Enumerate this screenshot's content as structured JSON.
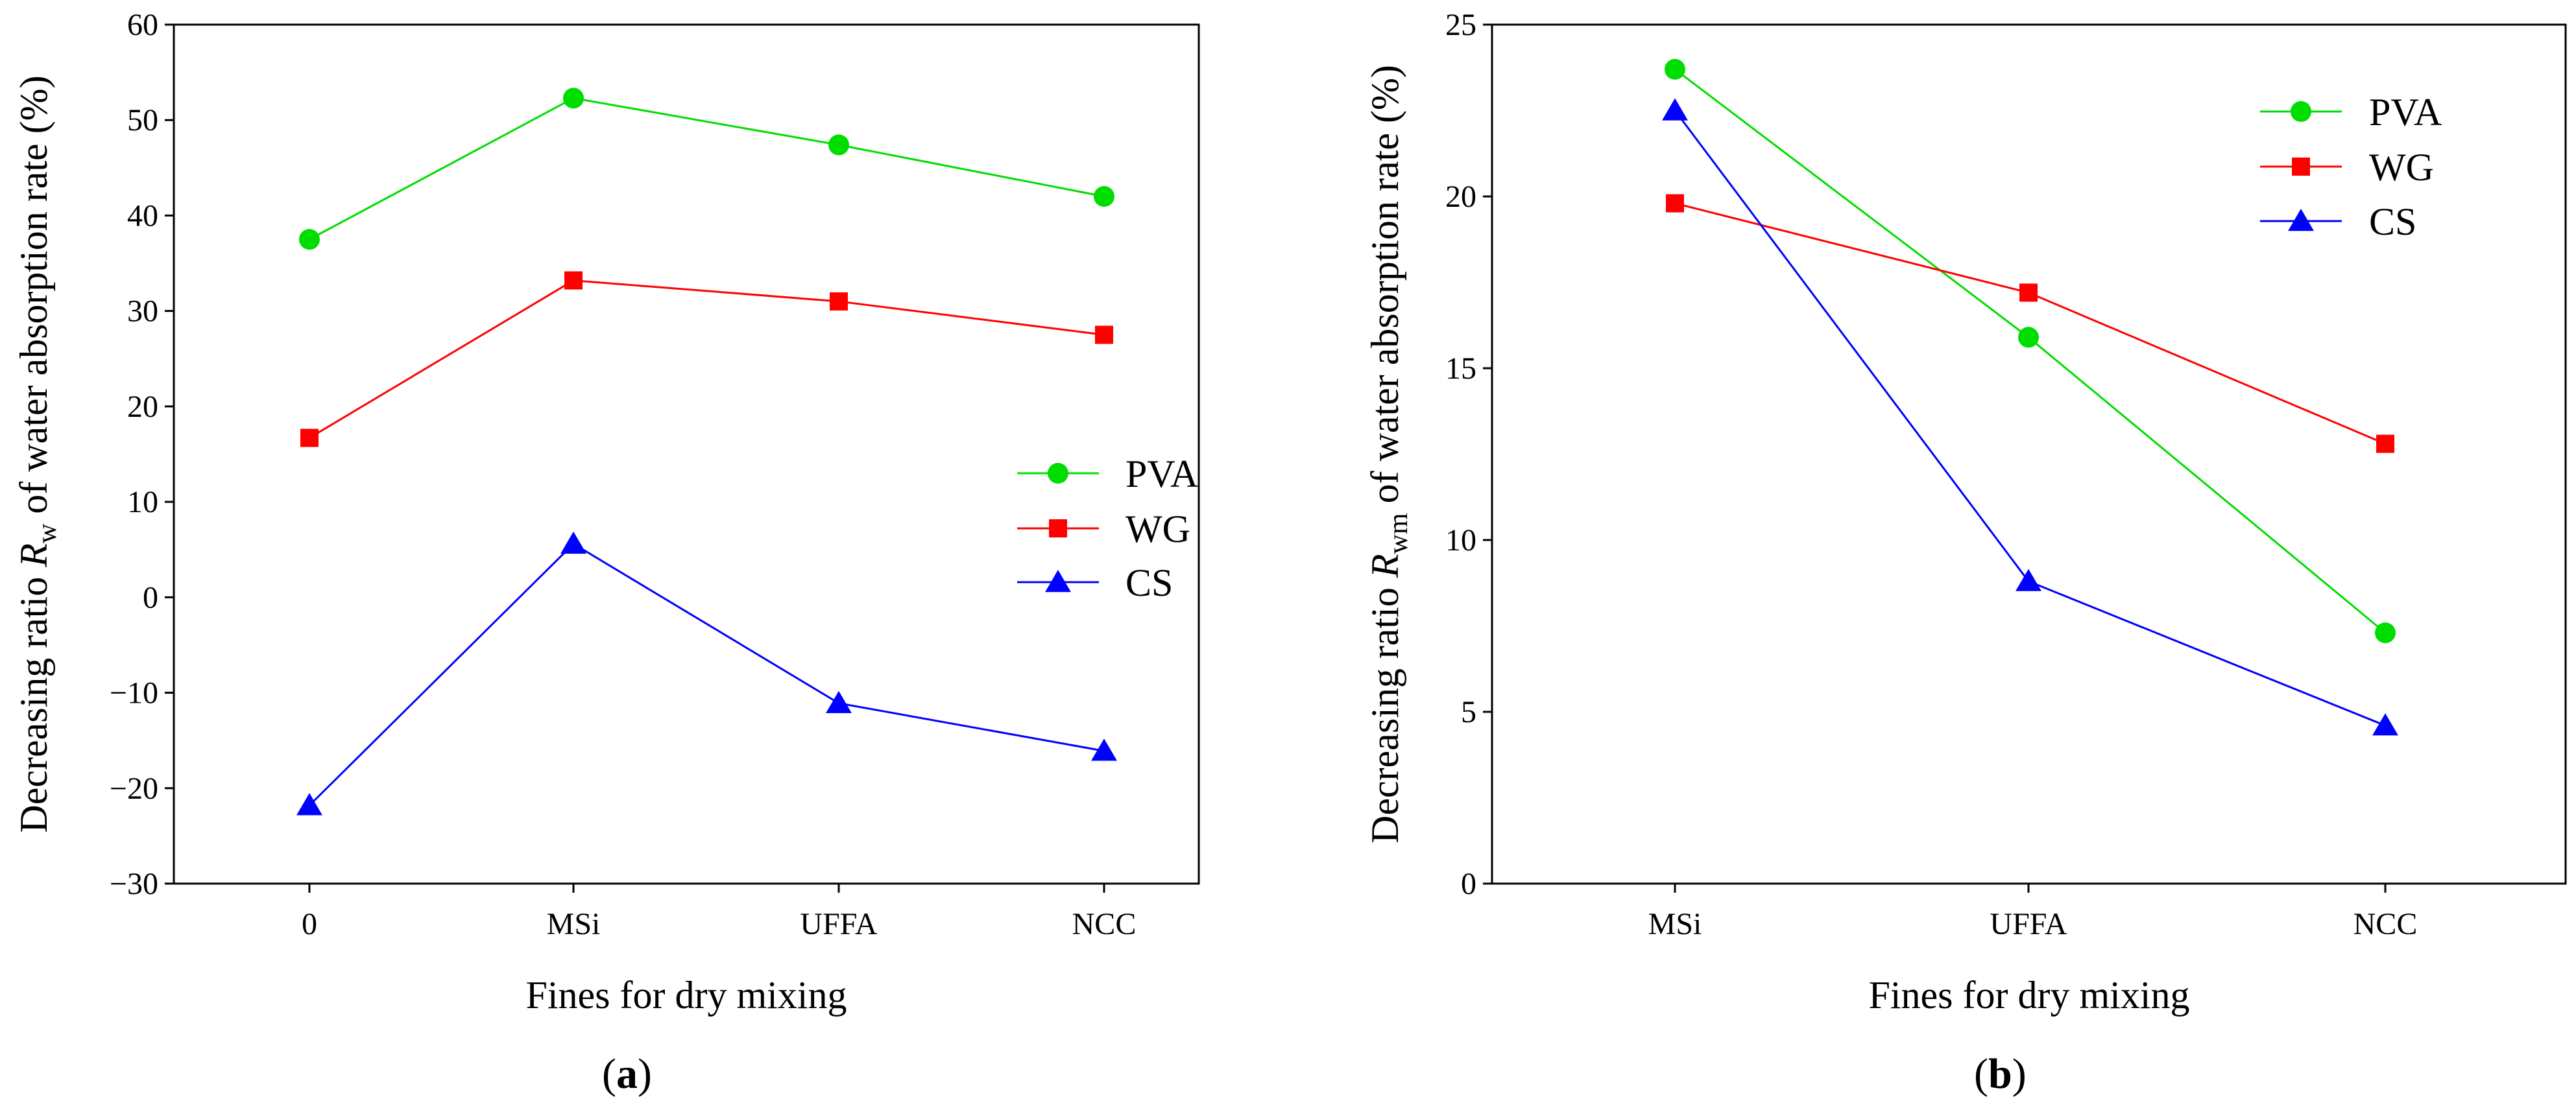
{
  "chart_data": [
    {
      "id": "a",
      "type": "line",
      "panel_label": "a",
      "categories": [
        "0",
        "MSi",
        "UFFA",
        "NCC"
      ],
      "series": [
        {
          "name": "PVA",
          "color": "#00dd00",
          "marker": "circle",
          "values": [
            37.5,
            52.3,
            47.4,
            42.0
          ]
        },
        {
          "name": "WG",
          "color": "#ff0000",
          "marker": "square",
          "values": [
            16.7,
            33.2,
            31.0,
            27.5
          ]
        },
        {
          "name": "CS",
          "color": "#0000ff",
          "marker": "triangle",
          "values": [
            -21.8,
            5.6,
            -11.1,
            -16.1
          ]
        }
      ],
      "ylim": [
        -30,
        60
      ],
      "yticks": [
        -30,
        -20,
        -10,
        0,
        10,
        20,
        30,
        40,
        50,
        60
      ],
      "ytick_labels": [
        "−30",
        "−20",
        "−10",
        "0",
        "10",
        "20",
        "30",
        "40",
        "50",
        "60"
      ],
      "xlabel": "Fines for dry mixing",
      "ylabel_prefix": "Decreasing ratio ",
      "ylabel_var": "R",
      "ylabel_sub": "w",
      "ylabel_suffix": " of water absorption rate (%)",
      "legend_position": "center-right",
      "grid": false
    },
    {
      "id": "b",
      "type": "line",
      "panel_label": "b",
      "categories": [
        "MSi",
        "UFFA",
        "NCC"
      ],
      "series": [
        {
          "name": "PVA",
          "color": "#00dd00",
          "marker": "circle",
          "values": [
            23.7,
            15.9,
            7.3
          ]
        },
        {
          "name": "WG",
          "color": "#ff0000",
          "marker": "square",
          "values": [
            19.8,
            17.2,
            12.8
          ]
        },
        {
          "name": "CS",
          "color": "#0000ff",
          "marker": "triangle",
          "values": [
            22.5,
            8.8,
            4.6
          ]
        }
      ],
      "ylim": [
        0,
        25
      ],
      "yticks": [
        0,
        5,
        10,
        15,
        20,
        25
      ],
      "ytick_labels": [
        "0",
        "5",
        "10",
        "15",
        "20",
        "25"
      ],
      "xlabel": "Fines for dry mixing",
      "ylabel_prefix": "Decreasing ratio ",
      "ylabel_var": "R",
      "ylabel_sub": "wm",
      "ylabel_suffix": " of water absorption rate (%)",
      "legend_position": "top-right",
      "grid": false
    }
  ]
}
